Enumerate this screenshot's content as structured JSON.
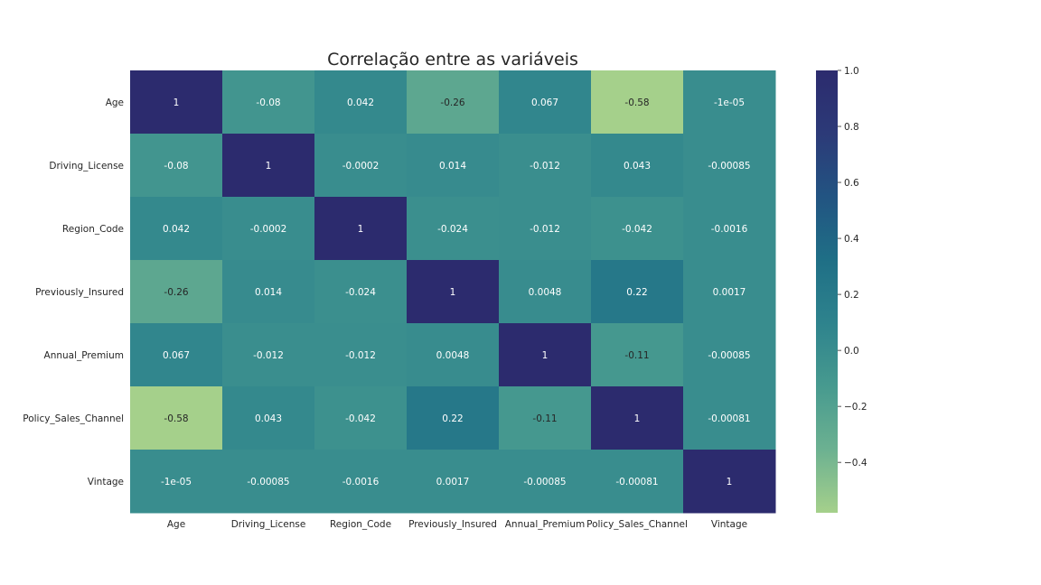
{
  "chart_data": {
    "type": "heatmap",
    "title": "Correlação entre as variáveis",
    "x_labels": [
      "Age",
      "Driving_License",
      "Region_Code",
      "Previously_Insured",
      "Annual_Premium",
      "Policy_Sales_Channel",
      "Vintage"
    ],
    "y_labels": [
      "Age",
      "Driving_License",
      "Region_Code",
      "Previously_Insured",
      "Annual_Premium",
      "Policy_Sales_Channel",
      "Vintage"
    ],
    "values": [
      [
        1,
        -0.08,
        0.042,
        -0.26,
        0.067,
        -0.58,
        -1e-05
      ],
      [
        -0.08,
        1,
        -0.0002,
        0.014,
        -0.012,
        0.043,
        -0.00085
      ],
      [
        0.042,
        -0.0002,
        1,
        -0.024,
        -0.012,
        -0.042,
        -0.0016
      ],
      [
        -0.26,
        0.014,
        -0.024,
        1,
        0.0048,
        0.22,
        0.0017
      ],
      [
        0.067,
        -0.012,
        -0.012,
        0.0048,
        1,
        -0.11,
        -0.00085
      ],
      [
        -0.58,
        0.043,
        -0.042,
        0.22,
        -0.11,
        1,
        -0.00081
      ],
      [
        -1e-05,
        -0.00085,
        -0.0016,
        0.0017,
        -0.00085,
        -0.00081,
        1
      ]
    ],
    "annotations": [
      [
        "1",
        "-0.08",
        "0.042",
        "-0.26",
        "0.067",
        "-0.58",
        "-1e-05"
      ],
      [
        "-0.08",
        "1",
        "-0.0002",
        "0.014",
        "-0.012",
        "0.043",
        "-0.00085"
      ],
      [
        "0.042",
        "-0.0002",
        "1",
        "-0.024",
        "-0.012",
        "-0.042",
        "-0.0016"
      ],
      [
        "-0.26",
        "0.014",
        "-0.024",
        "1",
        "0.0048",
        "0.22",
        "0.0017"
      ],
      [
        "0.067",
        "-0.012",
        "-0.012",
        "0.0048",
        "1",
        "-0.11",
        "-0.00085"
      ],
      [
        "-0.58",
        "0.043",
        "-0.042",
        "0.22",
        "-0.11",
        "1",
        "-0.00081"
      ],
      [
        "-1e-05",
        "-0.00085",
        "-0.0016",
        "0.0017",
        "-0.00085",
        "-0.00081",
        "1"
      ]
    ],
    "colorbar": {
      "vmin": -0.58,
      "vmax": 1.0,
      "ticks": [
        1.0,
        0.8,
        0.6,
        0.4,
        0.2,
        0.0,
        -0.2,
        -0.4
      ],
      "tick_labels": [
        "1.0",
        "0.8",
        "0.6",
        "0.4",
        "0.2",
        "0.0",
        "−0.2",
        "−0.4"
      ]
    },
    "colormap": "crest",
    "colormap_stops": [
      "#a5d08b",
      "#6cb191",
      "#479a8f",
      "#2e838d",
      "#1f6f86",
      "#225482",
      "#2c3a78",
      "#2c2b6e"
    ]
  }
}
